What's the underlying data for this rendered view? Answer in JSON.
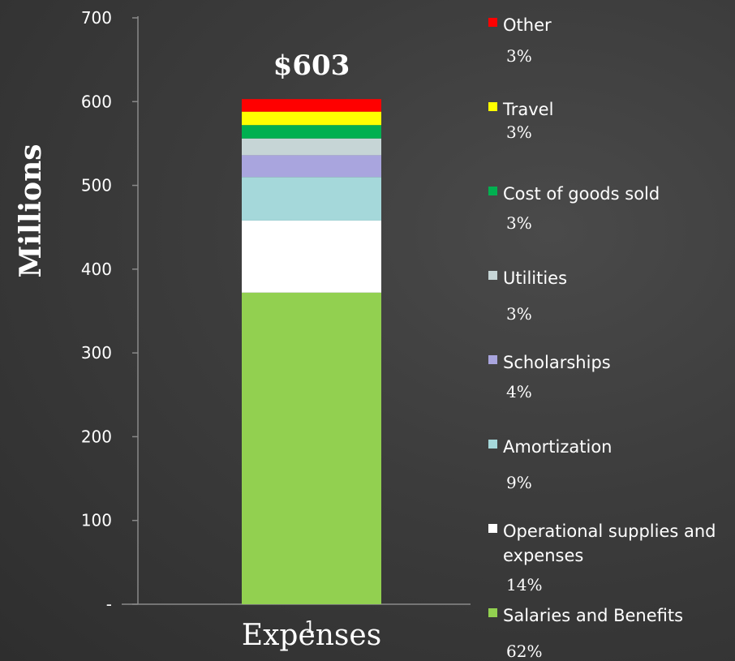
{
  "chart_data": {
    "type": "bar",
    "stacked": true,
    "ylabel": "Millions",
    "ylim": [
      0,
      700
    ],
    "yticks": [
      0,
      100,
      200,
      300,
      400,
      500,
      600,
      700
    ],
    "ytick_labels": [
      "-",
      "100",
      "200",
      "300",
      "400",
      "500",
      "600",
      "700"
    ],
    "categories": [
      "Expenses"
    ],
    "x_tick_label": "1",
    "total_label": "$603",
    "series": [
      {
        "name": "Salaries and Benefits",
        "values": [
          372
        ],
        "percent": "62%",
        "color": "#92d050"
      },
      {
        "name": "Operational supplies and expenses",
        "values": [
          86
        ],
        "percent": "14%",
        "color": "#ffffff"
      },
      {
        "name": "Amortization",
        "values": [
          52
        ],
        "percent": "9%",
        "color": "#a5d8da"
      },
      {
        "name": "Scholarships",
        "values": [
          26
        ],
        "percent": "4%",
        "color": "#a9a5de"
      },
      {
        "name": "Utilities",
        "values": [
          20
        ],
        "percent": "3%",
        "color": "#c6d5d6"
      },
      {
        "name": "Cost of goods sold",
        "values": [
          16
        ],
        "percent": "3%",
        "color": "#00b050"
      },
      {
        "name": "Travel",
        "values": [
          16
        ],
        "percent": "3%",
        "color": "#ffff00"
      },
      {
        "name": "Other",
        "values": [
          15
        ],
        "percent": "3%",
        "color": "#ff0000"
      }
    ],
    "legend_position": "right",
    "grid": false
  }
}
